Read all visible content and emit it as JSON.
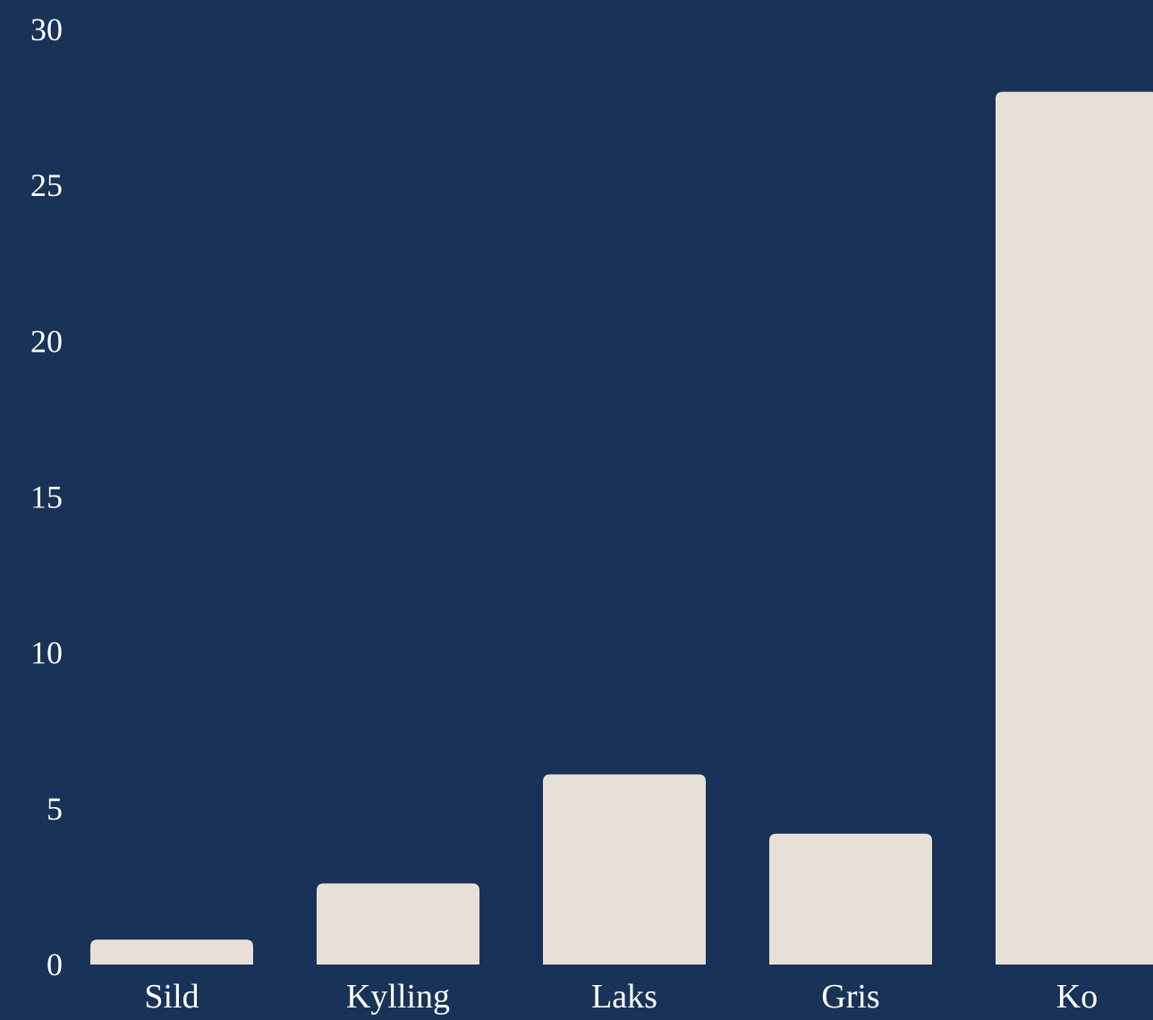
{
  "chart_data": {
    "type": "bar",
    "categories": [
      "Sild",
      "Kylling",
      "Laks",
      "Gris",
      "Ko"
    ],
    "values": [
      0.8,
      2.6,
      6.1,
      4.2,
      28.0
    ],
    "title": "",
    "xlabel": "",
    "ylabel": "",
    "ylim": [
      0,
      30
    ],
    "yticks": [
      0,
      5,
      10,
      15,
      20,
      25,
      30
    ],
    "grid": false,
    "legend": "none"
  },
  "colors": {
    "background": "#183357",
    "bar": "#e8e0d6",
    "text": "#ffffff"
  }
}
